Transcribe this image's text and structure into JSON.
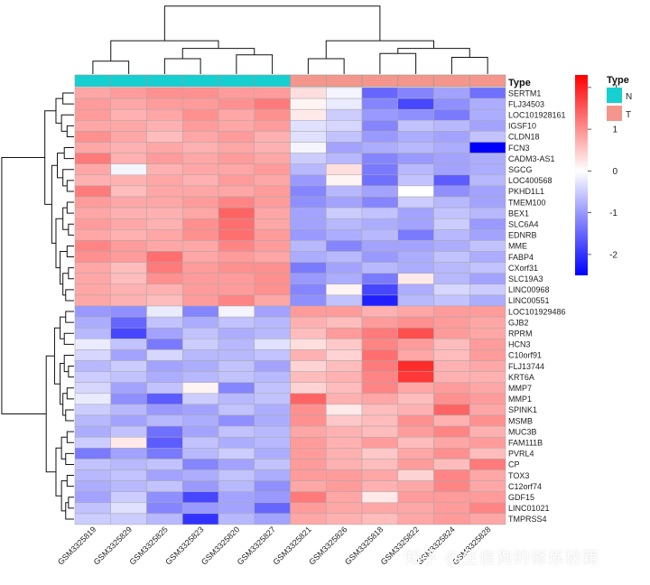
{
  "chart_data": {
    "type": "heatmap",
    "annotation_title": "Type",
    "annotation_legend_title": "Type",
    "annotation_levels": [
      {
        "label": "N",
        "color": "#16CFD0"
      },
      {
        "label": "T",
        "color": "#F4968C"
      }
    ],
    "columns": [
      "GSM3325819",
      "GSM3325829",
      "GSM3325825",
      "GSM3325823",
      "GSM3325820",
      "GSM3325827",
      "GSM3325821",
      "GSM3325826",
      "GSM3325818",
      "GSM3325822",
      "GSM3325824",
      "GSM3325828"
    ],
    "column_type": [
      "N",
      "N",
      "N",
      "N",
      "N",
      "N",
      "T",
      "T",
      "T",
      "T",
      "T",
      "T"
    ],
    "rows": [
      "SERTM1",
      "FLJ34503",
      "LOC101928161",
      "IGSF10",
      "CLDN18",
      "FCN3",
      "CADM3-AS1",
      "SGCG",
      "LOC400568",
      "PKHD1L1",
      "TMEM100",
      "BEX1",
      "SLC6A4",
      "EDNRB",
      "MME",
      "FABP4",
      "CXorf31",
      "SLC19A3",
      "LINC00968",
      "LINC00551",
      "LOC101929486",
      "GJB2",
      "RPRM",
      "HCN3",
      "C10orf91",
      "FLJ13744",
      "KRT6A",
      "MMP7",
      "MMP1",
      "SPINK1",
      "MSMB",
      "MUC3B",
      "FAM111B",
      "PVRL4",
      "CP",
      "TOX3",
      "C12orf74",
      "GDF15",
      "LINC01021",
      "TMPRSS4"
    ],
    "values": [
      [
        0.8,
        0.9,
        1.0,
        1.0,
        0.9,
        0.9,
        0.3,
        -0.1,
        -1.5,
        -1.2,
        -0.9,
        -1.4
      ],
      [
        0.9,
        0.8,
        0.9,
        0.9,
        1.0,
        1.2,
        0.1,
        -0.2,
        -1.2,
        -1.8,
        -1.1,
        -0.8
      ],
      [
        0.9,
        0.7,
        0.8,
        1.0,
        0.8,
        1.0,
        0.2,
        -0.5,
        -1.0,
        -1.1,
        -1.3,
        -0.8
      ],
      [
        0.8,
        0.8,
        0.7,
        0.9,
        0.8,
        0.9,
        -0.3,
        -0.4,
        -1.2,
        -0.6,
        -0.7,
        -0.9
      ],
      [
        1.0,
        0.8,
        0.6,
        0.8,
        0.9,
        0.7,
        -0.3,
        -0.6,
        -1.0,
        -0.8,
        -0.9,
        -0.6
      ],
      [
        0.8,
        0.7,
        0.8,
        0.7,
        0.8,
        0.7,
        -0.1,
        -0.9,
        -0.8,
        -0.7,
        -0.8,
        -2.5
      ],
      [
        1.2,
        0.7,
        0.9,
        0.8,
        0.9,
        0.8,
        -0.5,
        -0.7,
        -1.2,
        -1.0,
        -0.9,
        -0.8
      ],
      [
        0.8,
        -0.1,
        0.7,
        0.8,
        0.8,
        0.9,
        -0.7,
        0.3,
        -1.3,
        -0.7,
        -0.9,
        -0.8
      ],
      [
        0.7,
        0.7,
        0.8,
        0.7,
        0.9,
        0.8,
        -1.0,
        0.1,
        -1.4,
        -0.6,
        -1.6,
        -0.7
      ],
      [
        1.2,
        0.6,
        0.8,
        0.8,
        0.8,
        0.9,
        -1.2,
        -0.7,
        -0.9,
        0.0,
        -1.1,
        -0.9
      ],
      [
        0.9,
        0.8,
        0.8,
        0.9,
        1.1,
        0.9,
        -1.1,
        -0.9,
        -1.2,
        -0.5,
        -0.7,
        -0.9
      ],
      [
        0.8,
        0.7,
        0.7,
        0.8,
        1.4,
        0.8,
        -0.9,
        -0.5,
        -0.6,
        -0.9,
        -0.6,
        -0.7
      ],
      [
        0.9,
        0.8,
        0.7,
        1.0,
        1.3,
        0.8,
        -0.9,
        -0.7,
        -0.8,
        -0.9,
        -0.5,
        -1.0
      ],
      [
        0.8,
        0.7,
        0.8,
        1.0,
        1.3,
        0.9,
        -1.0,
        -0.8,
        -0.7,
        -1.3,
        -0.7,
        -0.9
      ],
      [
        1.1,
        0.9,
        0.8,
        0.8,
        1.1,
        0.9,
        -0.7,
        -1.2,
        -0.9,
        -0.9,
        -0.8,
        -0.6
      ],
      [
        1.0,
        0.9,
        1.3,
        0.8,
        0.9,
        0.8,
        -0.8,
        -0.7,
        -1.0,
        -0.8,
        -0.6,
        -0.8
      ],
      [
        0.8,
        0.6,
        1.2,
        0.9,
        1.0,
        1.0,
        -1.3,
        -0.9,
        -0.7,
        -0.8,
        -0.7,
        -0.6
      ],
      [
        0.8,
        0.6,
        1.0,
        0.9,
        0.9,
        1.0,
        -1.0,
        -0.8,
        -1.3,
        0.2,
        -0.7,
        -0.9
      ],
      [
        0.8,
        0.7,
        0.7,
        0.9,
        0.9,
        1.0,
        -1.2,
        0.1,
        -1.8,
        -0.8,
        -0.4,
        -0.5
      ],
      [
        0.8,
        0.7,
        0.6,
        0.9,
        1.1,
        0.8,
        -1.1,
        -0.6,
        -2.2,
        -0.7,
        -0.6,
        -0.8
      ],
      [
        -1.0,
        -1.1,
        -0.2,
        -1.2,
        -0.1,
        -0.9,
        0.9,
        0.9,
        0.7,
        0.8,
        0.9,
        0.9
      ],
      [
        -0.8,
        -1.5,
        -0.6,
        -0.8,
        -0.6,
        -0.7,
        0.7,
        0.6,
        0.9,
        1.0,
        0.9,
        0.8
      ],
      [
        -0.7,
        -1.8,
        -0.9,
        -0.6,
        -0.8,
        -0.7,
        0.6,
        0.9,
        1.2,
        1.6,
        0.9,
        0.8
      ],
      [
        -0.2,
        -0.6,
        -1.3,
        -0.5,
        -0.7,
        -0.3,
        0.3,
        0.5,
        1.1,
        0.9,
        0.6,
        0.9
      ],
      [
        -0.4,
        -0.9,
        -0.4,
        -0.7,
        -0.7,
        -0.6,
        0.7,
        0.4,
        1.3,
        0.8,
        0.6,
        0.9
      ],
      [
        -0.7,
        -0.5,
        -0.9,
        -0.8,
        -0.6,
        -0.9,
        0.4,
        0.6,
        1.2,
        1.9,
        0.7,
        0.8
      ],
      [
        -0.5,
        -0.6,
        -0.8,
        -0.7,
        -0.6,
        -0.7,
        0.6,
        0.7,
        1.1,
        1.8,
        0.7,
        0.7
      ],
      [
        -0.4,
        -0.9,
        -0.6,
        0.1,
        -1.2,
        -0.6,
        0.4,
        0.6,
        1.1,
        0.8,
        0.9,
        0.8
      ],
      [
        -0.2,
        -1.1,
        -1.6,
        -0.5,
        -0.7,
        -0.6,
        1.4,
        0.7,
        0.8,
        0.6,
        1.0,
        0.9
      ],
      [
        -0.5,
        -0.7,
        -1.0,
        -0.9,
        -0.6,
        -0.8,
        1.0,
        0.2,
        0.6,
        0.7,
        1.4,
        0.8
      ],
      [
        -0.7,
        -0.9,
        -0.7,
        -0.8,
        -1.1,
        -0.8,
        1.0,
        0.5,
        0.6,
        1.0,
        0.7,
        1.0
      ],
      [
        -0.8,
        -0.6,
        -1.4,
        -0.9,
        -0.6,
        -0.7,
        0.8,
        0.7,
        0.6,
        0.9,
        1.1,
        0.7
      ],
      [
        -0.5,
        0.2,
        -1.6,
        -0.6,
        -0.8,
        -0.7,
        0.9,
        0.7,
        0.9,
        0.6,
        0.8,
        0.9
      ],
      [
        -1.3,
        -0.9,
        -1.3,
        -0.7,
        -0.5,
        -0.8,
        0.9,
        0.7,
        0.5,
        0.8,
        1.0,
        0.6
      ],
      [
        -0.6,
        -0.7,
        -0.6,
        -1.2,
        -0.9,
        -0.6,
        0.9,
        0.7,
        0.6,
        0.9,
        0.6,
        1.2
      ],
      [
        -0.7,
        -0.6,
        -0.9,
        -0.8,
        -0.6,
        -0.8,
        0.9,
        0.9,
        0.8,
        0.4,
        1.1,
        0.8
      ],
      [
        -0.8,
        -0.7,
        -0.6,
        -1.0,
        -0.7,
        -1.1,
        0.8,
        0.9,
        0.7,
        0.8,
        1.1,
        0.8
      ],
      [
        -0.9,
        -0.5,
        -1.1,
        -1.8,
        -0.9,
        -1.0,
        1.2,
        0.8,
        0.2,
        0.9,
        0.9,
        0.9
      ],
      [
        -0.6,
        -0.3,
        -1.2,
        -1.0,
        -0.9,
        -1.5,
        0.9,
        0.8,
        0.8,
        0.8,
        0.9,
        1.1
      ],
      [
        -0.5,
        -0.5,
        -0.7,
        -2.0,
        -0.7,
        -0.9,
        0.8,
        0.7,
        0.6,
        0.8,
        0.9,
        0.8
      ]
    ],
    "color_scale": {
      "low": "#0000FF",
      "mid": "#FFFFFF",
      "high": "#FF0000",
      "min": -2.5,
      "max": 2.3
    },
    "color_bar_ticks": [
      2,
      1,
      0,
      -1,
      -2
    ]
  },
  "watermark": "知乎 @生信狗的修炼秘籍"
}
